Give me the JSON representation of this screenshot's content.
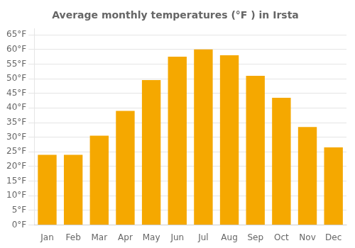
{
  "chart_data": {
    "type": "bar",
    "title": "Average monthly temperatures (°F ) in Irsta",
    "categories": [
      "Jan",
      "Feb",
      "Mar",
      "Apr",
      "May",
      "Jun",
      "Jul",
      "Aug",
      "Sep",
      "Oct",
      "Nov",
      "Dec"
    ],
    "values": [
      24,
      24,
      30.5,
      39,
      49.5,
      57.5,
      60,
      58,
      51,
      43.5,
      33.5,
      26.5
    ],
    "color": "#F5A800",
    "ylim": [
      0,
      67
    ],
    "yticks": [
      {
        "value": 0,
        "label": "0°F"
      },
      {
        "value": 5,
        "label": "5°F"
      },
      {
        "value": 10,
        "label": "10°F"
      },
      {
        "value": 15,
        "label": "15°F"
      },
      {
        "value": 20,
        "label": "20°F"
      },
      {
        "value": 25,
        "label": "25°F"
      },
      {
        "value": 30,
        "label": "30°F"
      },
      {
        "value": 35,
        "label": "35°F"
      },
      {
        "value": 40,
        "label": "40°F"
      },
      {
        "value": 45,
        "label": "45°F"
      },
      {
        "value": 50,
        "label": "50°F"
      },
      {
        "value": 55,
        "label": "55°F"
      },
      {
        "value": 60,
        "label": "60°F"
      },
      {
        "value": 65,
        "label": "65°F"
      }
    ],
    "grid": true
  }
}
